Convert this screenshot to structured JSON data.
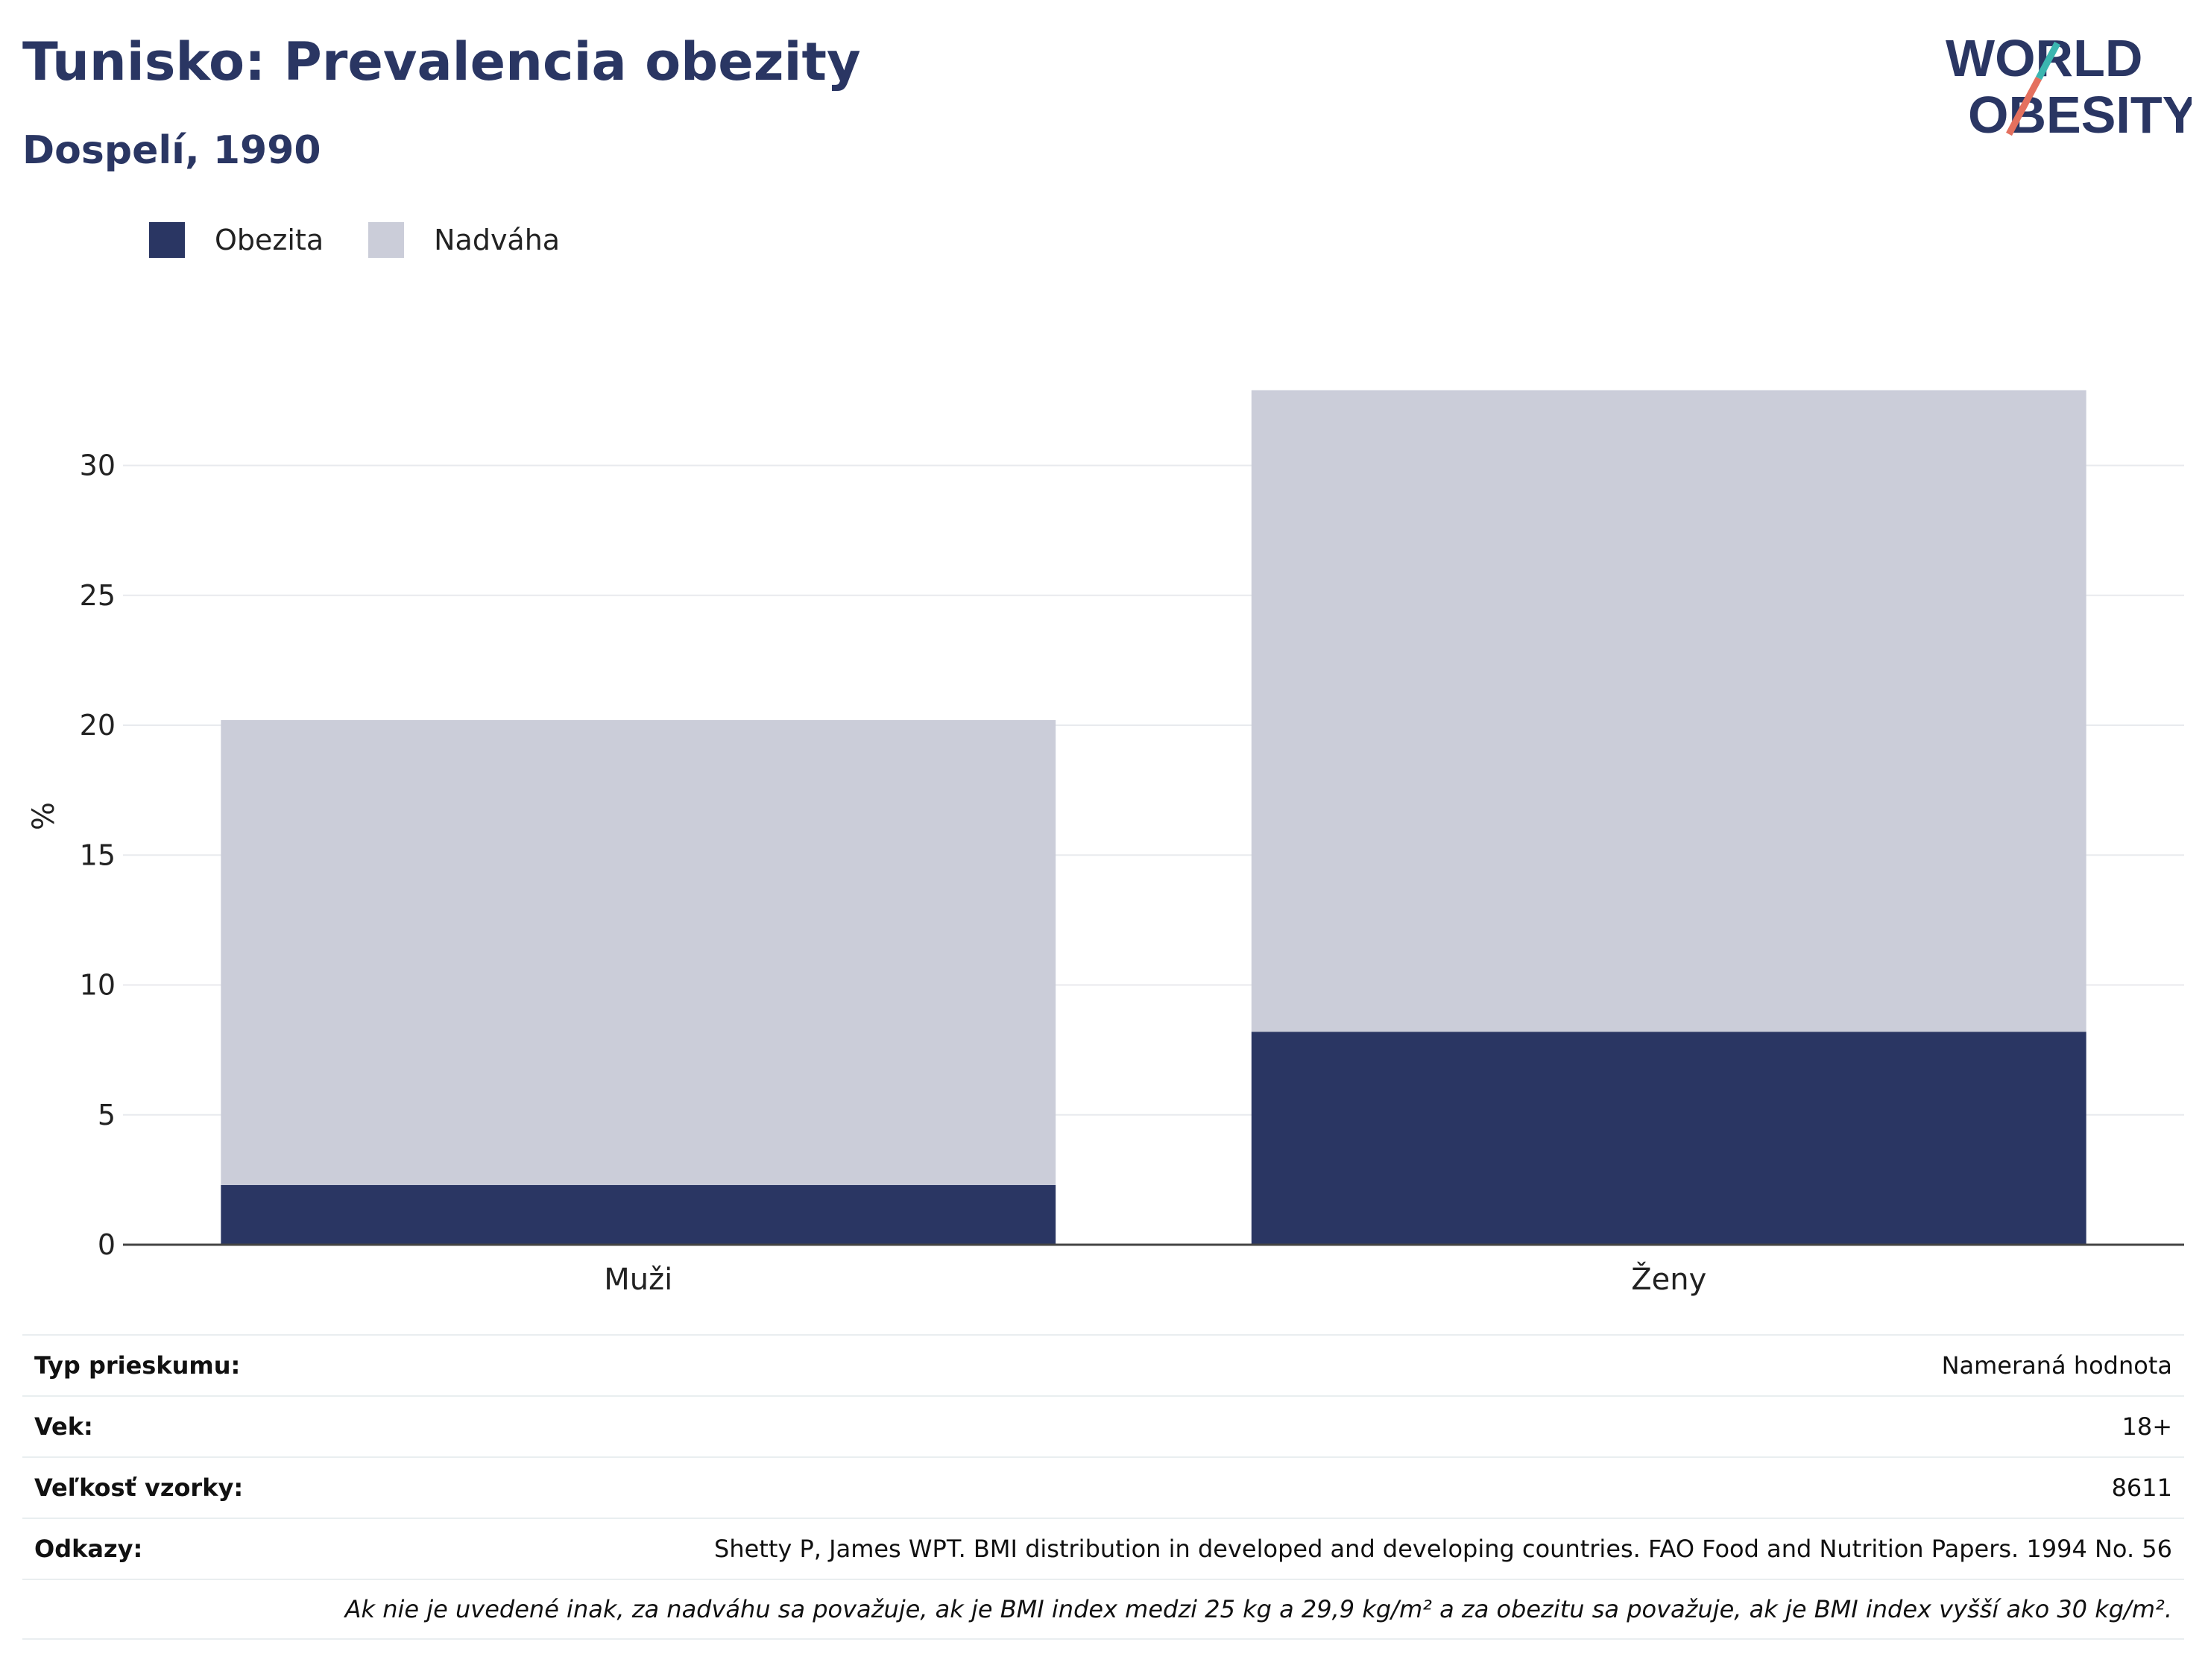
{
  "header": {
    "title": "Tunisko: Prevalencia obezity",
    "subtitle": "Dospelí, 1990"
  },
  "logo": {
    "line1": "WORLD",
    "line2": "OBESITY"
  },
  "chart_data": {
    "type": "bar",
    "stacked": true,
    "categories": [
      "Muži",
      "Ženy"
    ],
    "series": [
      {
        "name": "Obezita",
        "values": [
          2.3,
          8.2
        ],
        "color": "#2a3663"
      },
      {
        "name": "Nadváha",
        "values": [
          17.9,
          24.7
        ],
        "color": "#cbcdd9"
      }
    ],
    "ylabel": "%",
    "ylim": [
      0,
      33
    ],
    "yticks": [
      0,
      5,
      10,
      15,
      20,
      25,
      30
    ],
    "grid": true,
    "legend": "top-left"
  },
  "info": {
    "rows": [
      {
        "label": "Typ prieskumu:",
        "value": "Nameraná hodnota"
      },
      {
        "label": "Vek:",
        "value": "18+"
      },
      {
        "label": "Veľkosť vzorky:",
        "value": "8611"
      },
      {
        "label": "Odkazy:",
        "value": "Shetty P, James WPT. BMI distribution in developed and developing countries. FAO Food and Nutrition Papers. 1994 No. 56"
      }
    ],
    "note": "Ak nie je uvedené inak, za nadváhu sa považuje, ak je BMI index medzi 25 kg a 29,9 kg/m² a za obezitu sa považuje, ak je BMI index vyšší ako 30 kg/m²."
  }
}
